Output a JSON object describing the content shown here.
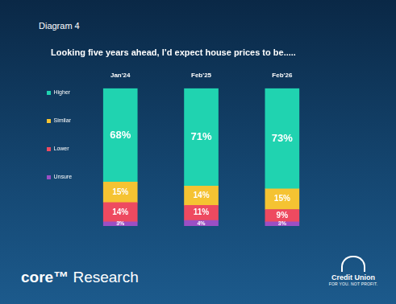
{
  "chart_data": {
    "type": "bar",
    "stacked": true,
    "title": "Looking five years ahead, I’d expect house prices to be.....",
    "annotations": [
      "Diagram 4",
      "core™",
      "Research",
      "Credit Union",
      "FOR YOU. NOT PROFIT."
    ],
    "categories": [
      "Jan'24",
      "Feb'25",
      "Feb'26"
    ],
    "series": [
      {
        "name": "Unsure",
        "color": "#9b4fc4",
        "values": [
          3,
          4,
          3
        ],
        "value_labels": [
          "3%",
          "4%",
          "3%"
        ]
      },
      {
        "name": "Lower",
        "color": "#ee4a60",
        "values": [
          14,
          11,
          9
        ],
        "value_labels": [
          "14%",
          "11%",
          "9%"
        ]
      },
      {
        "name": "Similar",
        "color": "#f5c332",
        "values": [
          15,
          14,
          15
        ],
        "value_labels": [
          "15%",
          "14%",
          "15%"
        ]
      },
      {
        "name": "Higher",
        "color": "#20d3b0",
        "values": [
          68,
          71,
          73
        ],
        "value_labels": [
          "68%",
          "71%",
          "73%"
        ]
      }
    ],
    "ylim": [
      0,
      100
    ],
    "grid": false,
    "legend": "left",
    "data_labels": true,
    "tick_labels": "x"
  }
}
